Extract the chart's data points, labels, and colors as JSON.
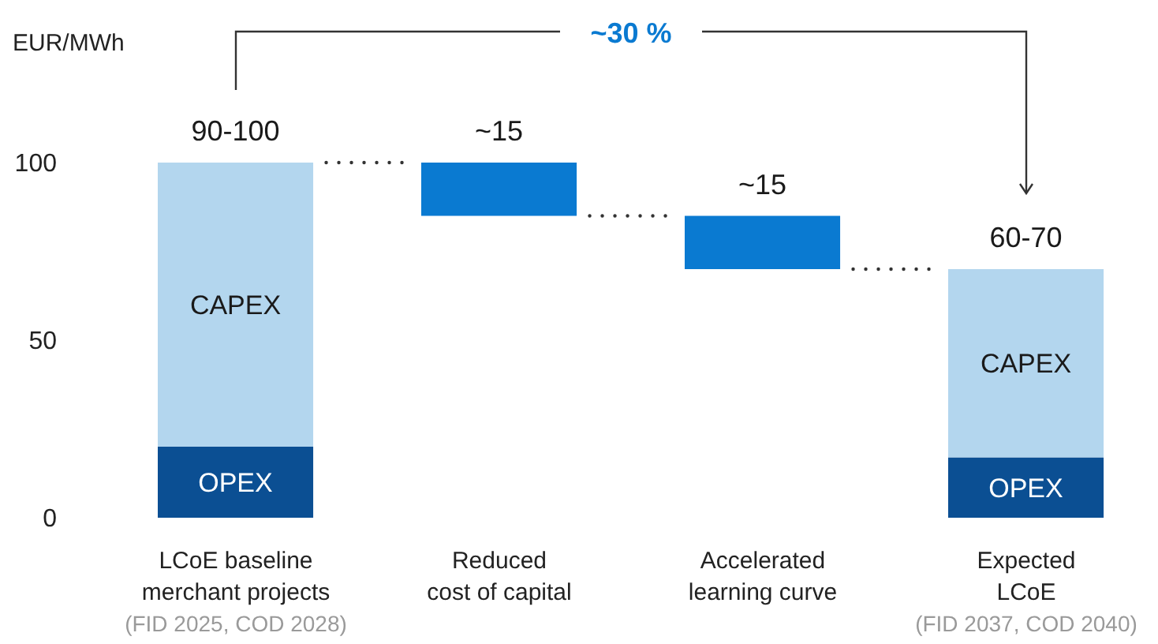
{
  "chart_data": {
    "type": "bar",
    "stacked": true,
    "ylabel": "EUR/MWh",
    "categories": [
      "LCoE baseline\nmerchant projects",
      "Reduced\ncost of capital",
      "Accelerated\nlearning curve",
      "Expected\nLCoE"
    ],
    "series": [
      {
        "name": "OPEX",
        "color": "#0b4f93",
        "values": [
          20,
          null,
          null,
          17
        ]
      },
      {
        "name": "CAPEX",
        "color": "#b3d6ee",
        "values": [
          80,
          null,
          null,
          53
        ]
      },
      {
        "color": "#0a7ad1",
        "values": [
          null,
          15,
          15,
          null
        ],
        "base": [
          null,
          85,
          70,
          null
        ],
        "value_labels": [
          null,
          "~15",
          "~15",
          null
        ]
      }
    ],
    "totals": [
      "90-100",
      null,
      null,
      "60-70"
    ],
    "ylim": [
      0,
      100
    ],
    "yticks": [
      0,
      50,
      100
    ],
    "annotations": [
      "~30 %",
      "(FID 2025, COD 2028)",
      "(FID 2037, COD 2040)"
    ]
  }
}
